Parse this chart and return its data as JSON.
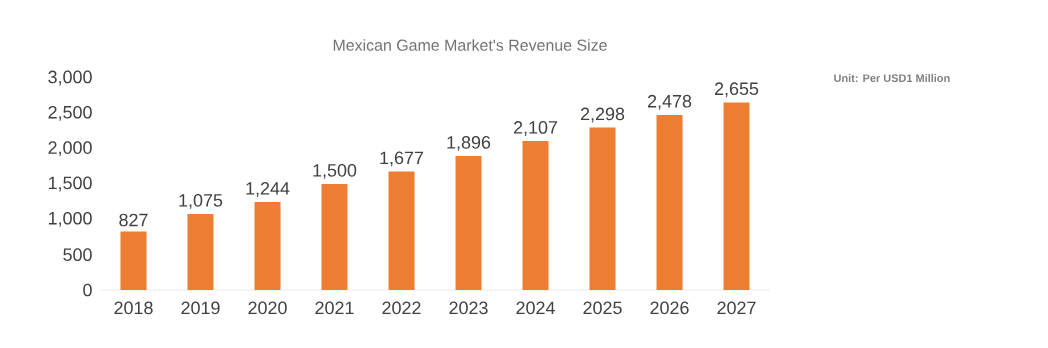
{
  "chart_data": {
    "type": "bar",
    "title": "Mexican Game Market's Revenue Size",
    "categories": [
      "2018",
      "2019",
      "2020",
      "2021",
      "2022",
      "2023",
      "2024",
      "2025",
      "2026",
      "2027"
    ],
    "values": [
      827,
      1075,
      1244,
      1500,
      1677,
      1896,
      2107,
      2298,
      2478,
      2655
    ],
    "value_labels": [
      "827",
      "1,075",
      "1,244",
      "1,500",
      "1,677",
      "1,896",
      "2,107",
      "2,298",
      "2,478",
      "2,655"
    ],
    "color": "#ed7d31",
    "ylim": [
      0,
      3000
    ],
    "yticks": [
      0,
      500,
      {
        "value": 1000,
        "label": "1,000"
      },
      {
        "value": 1500,
        "label": "1,500"
      },
      {
        "value": 2000,
        "label": "2,000"
      },
      {
        "value": 2500,
        "label": "2,500"
      },
      {
        "value": 3000,
        "label": "3,000"
      }
    ],
    "grid": false,
    "annotations": [
      "Unit: Per USD1 Million"
    ]
  }
}
